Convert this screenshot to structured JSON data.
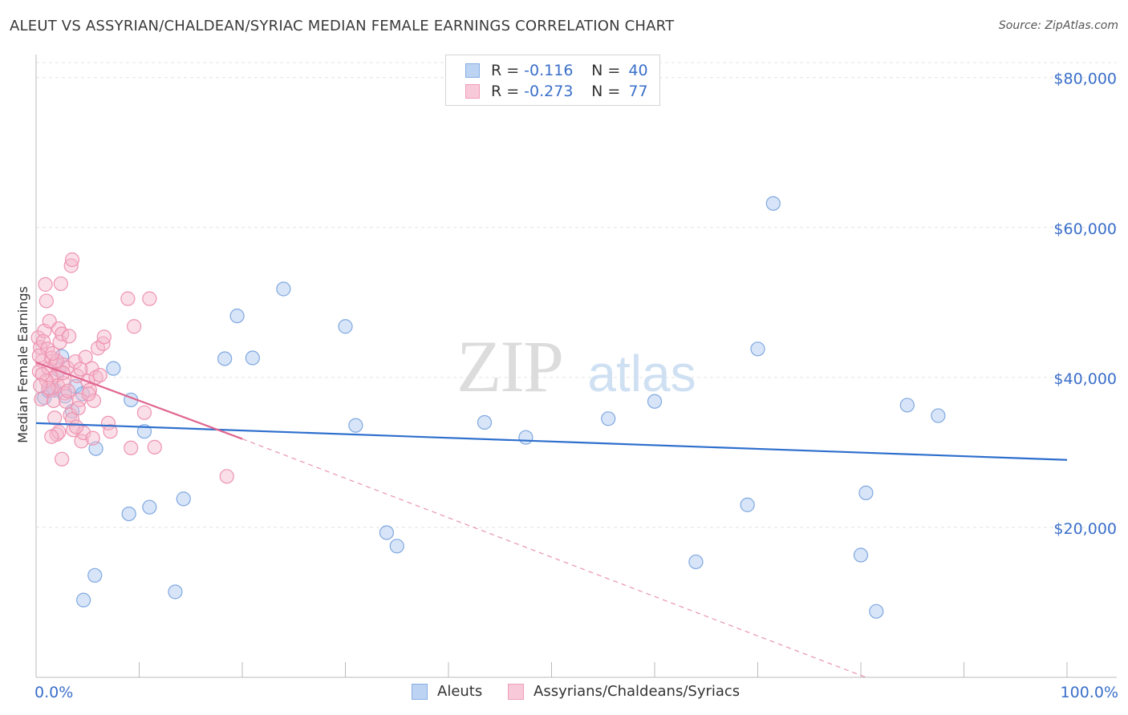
{
  "chart_data": {
    "type": "scatter",
    "title": "ALEUT VS ASSYRIAN/CHALDEAN/SYRIAC MEDIAN FEMALE EARNINGS CORRELATION CHART",
    "source": "Source: ZipAtlas.com",
    "ylabel": "Median Female Earnings",
    "xlabel": "",
    "xlim": [
      0,
      100
    ],
    "ylim": [
      0,
      82000
    ],
    "x_tick_labels": [
      "0.0%",
      "100.0%"
    ],
    "y_ticks": [
      {
        "value": 20000,
        "label": "$20,000"
      },
      {
        "value": 40000,
        "label": "$40,000"
      },
      {
        "value": 60000,
        "label": "$60,000"
      },
      {
        "value": 80000,
        "label": "$80,000"
      }
    ],
    "watermark": {
      "zip": "ZIP",
      "atlas": "atlas"
    },
    "legend": {
      "r_label": "R =",
      "n_label": "N =",
      "rows": [
        {
          "name": "Aleuts",
          "r": "-0.116",
          "n": "40"
        },
        {
          "name": "Assyrians/Chaldeans/Syriacs",
          "r": "-0.273",
          "n": "77"
        }
      ]
    },
    "series": [
      {
        "name": "Aleuts",
        "color": "#a9c6ef",
        "stroke": "#7fa8e0",
        "trend": {
          "x0": 0,
          "y0": 33900,
          "x1": 100,
          "y1": 29000,
          "color": "#2e6fcd"
        },
        "points": [
          [
            0.8,
            37300
          ],
          [
            1.2,
            38200
          ],
          [
            1.8,
            38300
          ],
          [
            2.2,
            41000
          ],
          [
            2.5,
            42800
          ],
          [
            2.8,
            37500
          ],
          [
            3.5,
            35500
          ],
          [
            3.8,
            38800
          ],
          [
            4.5,
            37800
          ],
          [
            5.8,
            30500
          ],
          [
            7.5,
            41200
          ],
          [
            9.2,
            37000
          ],
          [
            10.5,
            32800
          ],
          [
            4.6,
            10300
          ],
          [
            5.7,
            13600
          ],
          [
            9.0,
            21800
          ],
          [
            11.0,
            22700
          ],
          [
            13.5,
            11400
          ],
          [
            14.3,
            23800
          ],
          [
            18.3,
            42500
          ],
          [
            19.5,
            48200
          ],
          [
            21.0,
            42600
          ],
          [
            24.0,
            51800
          ],
          [
            30.0,
            46800
          ],
          [
            31.0,
            33600
          ],
          [
            34.0,
            19300
          ],
          [
            35.0,
            17500
          ],
          [
            43.5,
            34000
          ],
          [
            47.5,
            32000
          ],
          [
            55.5,
            34500
          ],
          [
            60.0,
            36800
          ],
          [
            64.0,
            15400
          ],
          [
            69.0,
            23000
          ],
          [
            70.0,
            43800
          ],
          [
            71.5,
            63200
          ],
          [
            80.0,
            16300
          ],
          [
            80.5,
            24600
          ],
          [
            81.5,
            8800
          ],
          [
            84.5,
            36300
          ],
          [
            87.5,
            34900
          ]
        ]
      },
      {
        "name": "Assyrians/Chaldeans/Syriacs",
        "color": "#f5b8cb",
        "stroke": "#ee93b0",
        "trend": {
          "x0": 0,
          "y0": 42000,
          "x1": 20,
          "y1": 31800,
          "color": "#e06690"
        },
        "trend_extension": {
          "x0": 20,
          "y0": 31800,
          "x1": 80.5,
          "y1": 0,
          "color": "#e06690"
        },
        "points": [
          [
            0.2,
            45300
          ],
          [
            0.4,
            44000
          ],
          [
            0.6,
            42200
          ],
          [
            0.3,
            40800
          ],
          [
            0.8,
            46200
          ],
          [
            1.0,
            50200
          ],
          [
            0.9,
            52400
          ],
          [
            0.7,
            44800
          ],
          [
            1.1,
            43800
          ],
          [
            1.2,
            41200
          ],
          [
            1.3,
            47500
          ],
          [
            1.5,
            42600
          ],
          [
            1.6,
            39900
          ],
          [
            1.4,
            38300
          ],
          [
            1.7,
            36900
          ],
          [
            1.9,
            41800
          ],
          [
            2.0,
            40300
          ],
          [
            2.1,
            38900
          ],
          [
            2.2,
            46500
          ],
          [
            2.3,
            44700
          ],
          [
            2.4,
            52500
          ],
          [
            2.5,
            45800
          ],
          [
            2.6,
            41700
          ],
          [
            2.7,
            39200
          ],
          [
            2.8,
            37900
          ],
          [
            3.0,
            41300
          ],
          [
            3.2,
            45500
          ],
          [
            3.3,
            35000
          ],
          [
            3.5,
            34400
          ],
          [
            3.6,
            33000
          ],
          [
            3.8,
            42100
          ],
          [
            4.0,
            40200
          ],
          [
            4.2,
            37000
          ],
          [
            4.4,
            31500
          ],
          [
            4.6,
            32600
          ],
          [
            4.8,
            42700
          ],
          [
            5.0,
            39500
          ],
          [
            5.2,
            38300
          ],
          [
            5.4,
            41200
          ],
          [
            5.6,
            36900
          ],
          [
            5.8,
            40000
          ],
          [
            6.0,
            43900
          ],
          [
            6.5,
            44500
          ],
          [
            6.6,
            45400
          ],
          [
            7.0,
            33900
          ],
          [
            7.2,
            32800
          ],
          [
            2.5,
            29100
          ],
          [
            3.4,
            54900
          ],
          [
            3.5,
            55700
          ],
          [
            8.9,
            50500
          ],
          [
            9.5,
            46800
          ],
          [
            11.0,
            50500
          ],
          [
            9.2,
            30600
          ],
          [
            11.5,
            30700
          ],
          [
            10.5,
            35300
          ],
          [
            18.5,
            26800
          ],
          [
            1.8,
            34600
          ],
          [
            2.0,
            32400
          ],
          [
            2.2,
            32700
          ],
          [
            2.9,
            36800
          ],
          [
            3.9,
            33400
          ],
          [
            4.1,
            35900
          ],
          [
            1.0,
            39600
          ],
          [
            0.5,
            37100
          ],
          [
            1.5,
            32100
          ],
          [
            0.3,
            42900
          ],
          [
            0.6,
            40400
          ],
          [
            2.6,
            40600
          ],
          [
            3.1,
            38200
          ],
          [
            4.3,
            41100
          ],
          [
            5.1,
            37800
          ],
          [
            5.5,
            31900
          ],
          [
            6.2,
            40300
          ],
          [
            1.2,
            38600
          ],
          [
            2.0,
            42200
          ],
          [
            0.4,
            38900
          ],
          [
            1.6,
            43200
          ]
        ]
      }
    ]
  }
}
